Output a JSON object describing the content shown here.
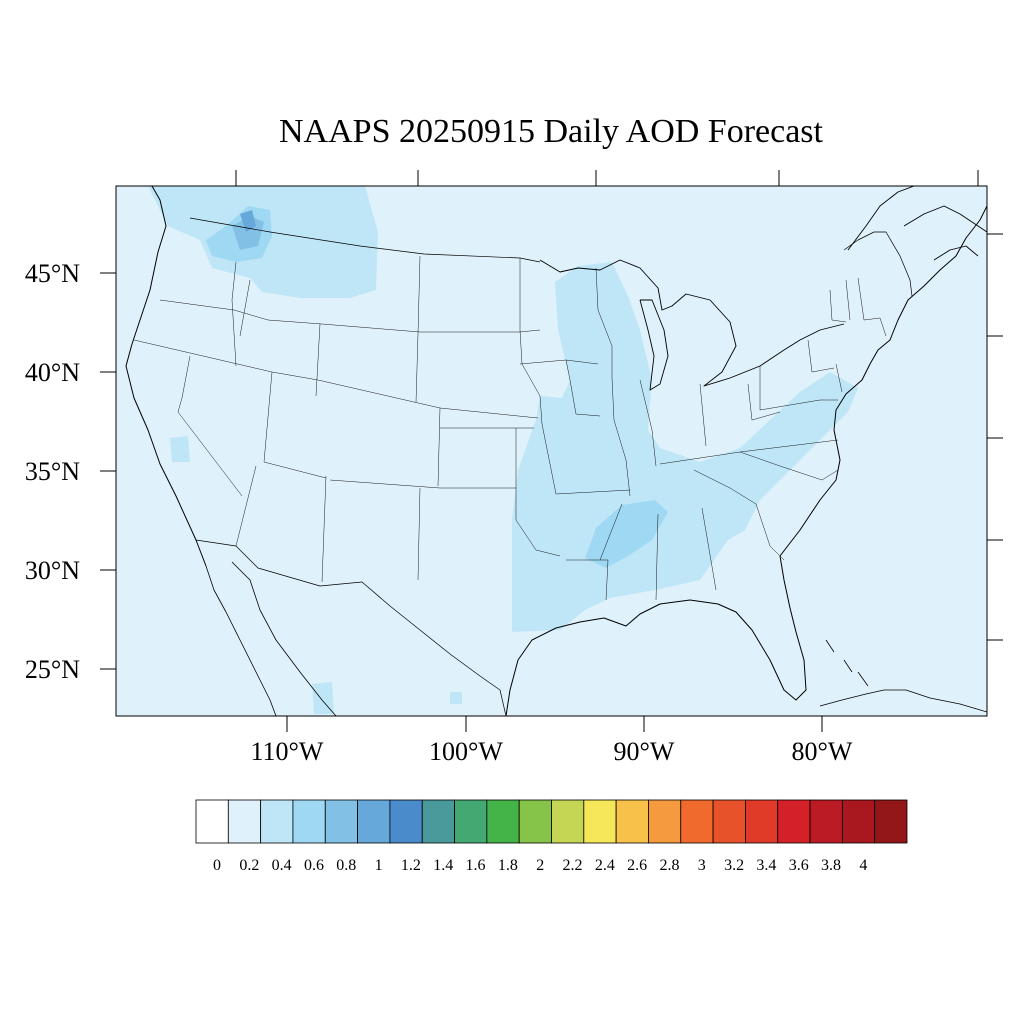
{
  "title": "NAAPS 20250915 Daily AOD Forecast",
  "axes": {
    "lat_labels": [
      "45°N",
      "40°N",
      "35°N",
      "30°N",
      "25°N"
    ],
    "lon_labels": [
      "110°W",
      "100°W",
      "90°W",
      "80°W"
    ]
  },
  "colorbar": {
    "tick_labels": [
      "0",
      "0.2",
      "0.4",
      "0.6",
      "0.8",
      "1",
      "1.2",
      "1.4",
      "1.6",
      "1.8",
      "2",
      "2.2",
      "2.4",
      "2.6",
      "2.8",
      "3",
      "3.2",
      "3.4",
      "3.6",
      "3.8",
      "4"
    ],
    "colors": [
      "#ffffff",
      "#dff1fa",
      "#bfe6f7",
      "#9fd8f2",
      "#83c0e6",
      "#67a8da",
      "#4a8ccb",
      "#4a9a9c",
      "#44a873",
      "#44b449",
      "#86c449",
      "#c4d654",
      "#f6e659",
      "#f7c14a",
      "#f69a3f",
      "#f16a2d",
      "#e8522a",
      "#e03a28",
      "#d42028",
      "#bb1b24",
      "#a8181e",
      "#931619"
    ]
  },
  "map_data": {
    "projection": "Lambert conformal (CONUS)",
    "extent": {
      "lon": [
        -125,
        -66
      ],
      "lat": [
        23,
        50
      ]
    },
    "variable": "Aerosol Optical Depth",
    "background_level": "0.2",
    "regions": [
      {
        "area": "northern Idaho / western Montana",
        "aod_range": "0.4–1.0"
      },
      {
        "area": "Montana",
        "aod_range": "0.2–0.4"
      },
      {
        "area": "Mississippi valley / Wisconsin / Illinois",
        "aod_range": "0.2–0.4"
      },
      {
        "area": "Mississippi / Louisiana",
        "aod_range": "0.4–0.6"
      },
      {
        "area": "eastern Texas / Oklahoma / Arkansas",
        "aod_range": "0.2–0.4"
      },
      {
        "area": "Tennessee / Appalachians / Mid-Atlantic",
        "aod_range": "0.2–0.4"
      }
    ]
  }
}
